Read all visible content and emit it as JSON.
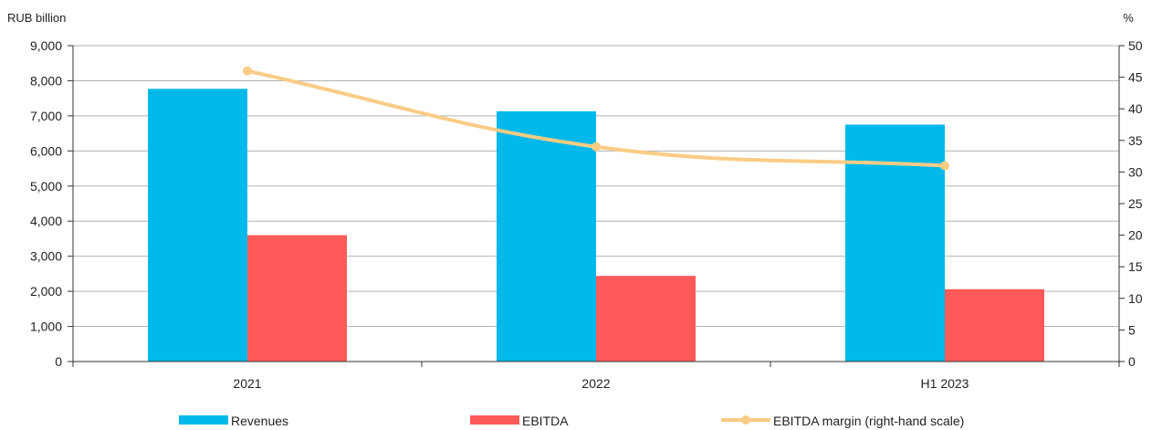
{
  "chart_data": {
    "type": "bar",
    "left_axis_unit": "RUB billion",
    "right_axis_unit": "%",
    "categories": [
      "2021",
      "2022",
      "H1 2023"
    ],
    "series": [
      {
        "name": "Revenues",
        "type": "bar",
        "axis": "left",
        "color": "#00B9EA",
        "values": [
          7770,
          7130,
          6750
        ]
      },
      {
        "name": "EBITDA",
        "type": "bar",
        "axis": "left",
        "color": "#FF5A5A",
        "values": [
          3600,
          2440,
          2060
        ]
      },
      {
        "name": "EBITDA margin (right-hand scale)",
        "type": "line",
        "axis": "right",
        "color": "#F9CC85",
        "values": [
          46,
          34,
          31
        ]
      }
    ],
    "left_ylim": [
      0,
      9000
    ],
    "left_ticks": [
      0,
      1000,
      2000,
      3000,
      4000,
      5000,
      6000,
      7000,
      8000,
      9000
    ],
    "left_tick_labels": [
      "0",
      "1,000",
      "2,000",
      "3,000",
      "4,000",
      "5,000",
      "6,000",
      "7,000",
      "8,000",
      "9,000"
    ],
    "right_ylim": [
      0,
      50
    ],
    "right_ticks": [
      0,
      5,
      10,
      15,
      20,
      25,
      30,
      35,
      40,
      45,
      50
    ],
    "right_tick_labels": [
      "0",
      "5",
      "10",
      "15",
      "20",
      "25",
      "30",
      "35",
      "40",
      "45",
      "50"
    ],
    "grid": true,
    "legend_position": "bottom"
  }
}
